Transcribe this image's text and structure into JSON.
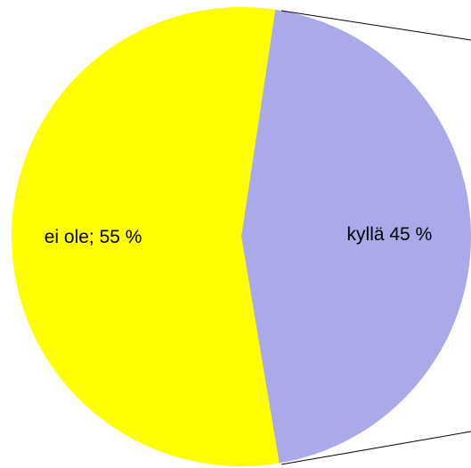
{
  "chart_data": {
    "type": "pie",
    "values": [
      45,
      55
    ],
    "value_labels": [
      "kyllä 45 %",
      "ei ole; 55 %"
    ],
    "colors": [
      "#aaaaea",
      "#ffff00"
    ]
  }
}
